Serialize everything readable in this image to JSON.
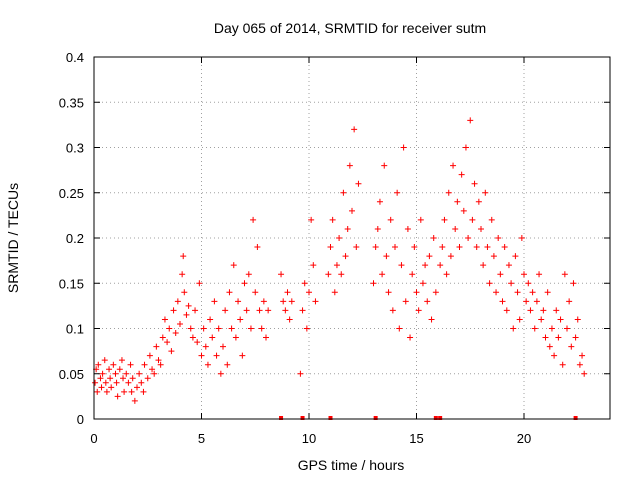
{
  "chart_data": {
    "type": "scatter",
    "title": "Day 065 of 2014, SRMTID for receiver sutm",
    "xlabel": "GPS time / hours",
    "ylabel": "SRMTID / TECUs",
    "xlim": [
      0,
      24
    ],
    "ylim": [
      0,
      0.4
    ],
    "xticks": [
      0,
      5,
      10,
      15,
      20
    ],
    "xtick_labels": [
      "0",
      "5",
      "10",
      "15",
      "20"
    ],
    "yticks": [
      0,
      0.05,
      0.1,
      0.15,
      0.2,
      0.25,
      0.3,
      0.35,
      0.4
    ],
    "ytick_labels": [
      "0",
      "0.05",
      "0.1",
      "0.15",
      "0.2",
      "0.25",
      "0.3",
      "0.35",
      "0.4"
    ],
    "grid": true,
    "marker": "+",
    "color": "#ff0000",
    "series": [
      {
        "name": "SRMTID",
        "x": [
          0.05,
          0.1,
          0.15,
          0.2,
          0.3,
          0.35,
          0.4,
          0.5,
          0.55,
          0.6,
          0.7,
          0.75,
          0.8,
          0.9,
          1.0,
          1.05,
          1.1,
          1.2,
          1.3,
          1.35,
          1.4,
          1.5,
          1.6,
          1.7,
          1.75,
          1.8,
          1.9,
          2.0,
          2.1,
          2.2,
          2.3,
          2.35,
          2.5,
          2.6,
          2.7,
          2.8,
          2.9,
          3.0,
          3.1,
          3.2,
          3.3,
          3.4,
          3.5,
          3.6,
          3.7,
          3.8,
          3.9,
          4.0,
          4.1,
          4.15,
          4.2,
          4.3,
          4.4,
          4.5,
          4.6,
          4.7,
          4.8,
          4.9,
          5.0,
          5.1,
          5.2,
          5.3,
          5.4,
          5.5,
          5.6,
          5.7,
          5.8,
          5.9,
          6.0,
          6.1,
          6.2,
          6.3,
          6.4,
          6.5,
          6.6,
          6.7,
          6.8,
          6.9,
          7.0,
          7.1,
          7.2,
          7.3,
          7.4,
          7.5,
          7.6,
          7.7,
          7.8,
          7.9,
          8.0,
          8.1,
          8.7,
          8.8,
          8.9,
          9.0,
          9.1,
          9.2,
          9.6,
          9.7,
          9.8,
          9.9,
          10.0,
          10.1,
          10.2,
          10.3,
          10.9,
          11.0,
          11.1,
          11.2,
          11.3,
          11.4,
          11.5,
          11.6,
          11.7,
          11.8,
          11.9,
          12.0,
          12.1,
          12.2,
          12.3,
          13.0,
          13.1,
          13.2,
          13.3,
          13.4,
          13.5,
          13.6,
          13.7,
          13.8,
          13.9,
          14.0,
          14.1,
          14.2,
          14.3,
          14.4,
          14.5,
          14.6,
          14.7,
          14.8,
          14.9,
          15.0,
          15.1,
          15.2,
          15.3,
          15.4,
          15.5,
          15.6,
          15.7,
          15.8,
          15.9,
          16.1,
          16.2,
          16.3,
          16.4,
          16.5,
          16.6,
          16.7,
          16.8,
          16.9,
          17.0,
          17.1,
          17.2,
          17.3,
          17.4,
          17.5,
          17.6,
          17.7,
          17.8,
          17.9,
          18.0,
          18.1,
          18.2,
          18.3,
          18.4,
          18.5,
          18.6,
          18.7,
          18.8,
          18.9,
          19.0,
          19.1,
          19.2,
          19.3,
          19.4,
          19.5,
          19.6,
          19.7,
          19.8,
          19.9,
          20.0,
          20.1,
          20.2,
          20.3,
          20.4,
          20.5,
          20.6,
          20.7,
          20.8,
          20.9,
          21.0,
          21.1,
          21.2,
          21.3,
          21.4,
          21.5,
          21.6,
          21.7,
          21.8,
          21.9,
          22.0,
          22.1,
          22.2,
          22.3,
          22.4,
          22.5,
          22.6,
          22.7,
          22.8
        ],
        "y": [
          0.04,
          0.055,
          0.03,
          0.06,
          0.045,
          0.035,
          0.05,
          0.065,
          0.04,
          0.03,
          0.055,
          0.045,
          0.035,
          0.06,
          0.05,
          0.04,
          0.025,
          0.055,
          0.065,
          0.045,
          0.03,
          0.05,
          0.04,
          0.06,
          0.03,
          0.045,
          0.02,
          0.035,
          0.05,
          0.04,
          0.03,
          0.06,
          0.045,
          0.07,
          0.055,
          0.05,
          0.08,
          0.065,
          0.06,
          0.09,
          0.11,
          0.085,
          0.1,
          0.075,
          0.12,
          0.095,
          0.13,
          0.105,
          0.16,
          0.18,
          0.14,
          0.115,
          0.125,
          0.1,
          0.09,
          0.12,
          0.085,
          0.15,
          0.07,
          0.1,
          0.08,
          0.06,
          0.11,
          0.09,
          0.13,
          0.07,
          0.1,
          0.05,
          0.08,
          0.12,
          0.06,
          0.14,
          0.1,
          0.17,
          0.09,
          0.13,
          0.11,
          0.07,
          0.15,
          0.12,
          0.16,
          0.1,
          0.22,
          0.14,
          0.19,
          0.12,
          0.1,
          0.13,
          0.09,
          0.12,
          0.16,
          0.13,
          0.12,
          0.14,
          0.11,
          0.13,
          0.05,
          0.12,
          0.15,
          0.1,
          0.14,
          0.22,
          0.17,
          0.13,
          0.16,
          0.19,
          0.22,
          0.14,
          0.17,
          0.2,
          0.16,
          0.25,
          0.18,
          0.21,
          0.28,
          0.23,
          0.32,
          0.19,
          0.26,
          0.15,
          0.19,
          0.21,
          0.24,
          0.16,
          0.28,
          0.18,
          0.14,
          0.22,
          0.12,
          0.19,
          0.25,
          0.1,
          0.17,
          0.3,
          0.13,
          0.21,
          0.09,
          0.16,
          0.19,
          0.14,
          0.12,
          0.22,
          0.15,
          0.17,
          0.13,
          0.18,
          0.11,
          0.2,
          0.14,
          0.17,
          0.19,
          0.22,
          0.16,
          0.25,
          0.18,
          0.28,
          0.21,
          0.24,
          0.19,
          0.27,
          0.23,
          0.3,
          0.2,
          0.33,
          0.22,
          0.26,
          0.19,
          0.24,
          0.21,
          0.17,
          0.25,
          0.19,
          0.15,
          0.22,
          0.18,
          0.14,
          0.2,
          0.16,
          0.13,
          0.19,
          0.12,
          0.17,
          0.15,
          0.1,
          0.18,
          0.14,
          0.11,
          0.2,
          0.16,
          0.13,
          0.15,
          0.12,
          0.14,
          0.1,
          0.13,
          0.16,
          0.11,
          0.12,
          0.09,
          0.14,
          0.08,
          0.1,
          0.07,
          0.12,
          0.09,
          0.11,
          0.06,
          0.16,
          0.1,
          0.13,
          0.08,
          0.15,
          0.09,
          0.11,
          0.06,
          0.07,
          0.05
        ]
      }
    ],
    "ground_marks_x": [
      8.7,
      9.7,
      11.0,
      13.1,
      15.9,
      16.1,
      22.4
    ]
  }
}
